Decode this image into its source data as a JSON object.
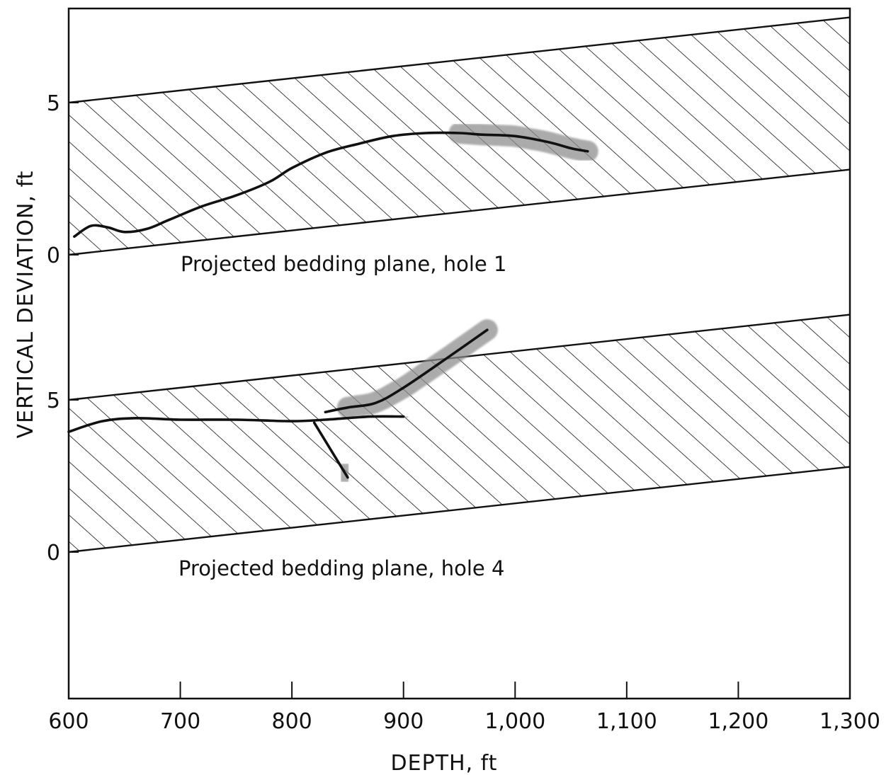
{
  "chart_data": {
    "type": "line",
    "xlabel": "DEPTH, ft",
    "ylabel": "VERTICAL DEVIATION, ft",
    "xlim": [
      600,
      1300
    ],
    "x_ticks": [
      {
        "value": 600,
        "label": "600"
      },
      {
        "value": 700,
        "label": "700"
      },
      {
        "value": 800,
        "label": "800"
      },
      {
        "value": 900,
        "label": "900"
      },
      {
        "value": 1000,
        "label": "1,000"
      },
      {
        "value": 1100,
        "label": "1,100"
      },
      {
        "value": 1200,
        "label": "1,200"
      },
      {
        "value": 1300,
        "label": "1,300"
      }
    ],
    "grid": false,
    "legend": "none",
    "panels": [
      {
        "label": "Projected bedding plane, hole 1",
        "y_ticks": [
          {
            "value": 0,
            "label": "0"
          },
          {
            "value": 5,
            "label": "5"
          }
        ],
        "band": {
          "lower": [
            [
              600,
              0
            ],
            [
              1300,
              2.8
            ]
          ],
          "upper": [
            [
              600,
              5
            ],
            [
              1300,
              7.8
            ]
          ]
        },
        "series": [
          {
            "points": [
              [
                605,
                0.6
              ],
              [
                620,
                0.95
              ],
              [
                635,
                0.9
              ],
              [
                650,
                0.75
              ],
              [
                670,
                0.85
              ],
              [
                690,
                1.15
              ],
              [
                720,
                1.6
              ],
              [
                750,
                1.95
              ],
              [
                780,
                2.4
              ],
              [
                800,
                2.85
              ],
              [
                830,
                3.35
              ],
              [
                860,
                3.65
              ],
              [
                890,
                3.9
              ],
              [
                920,
                4.0
              ],
              [
                950,
                4.0
              ],
              [
                970,
                3.95
              ],
              [
                1000,
                3.9
              ],
              [
                1030,
                3.7
              ],
              [
                1050,
                3.5
              ],
              [
                1065,
                3.4
              ]
            ],
            "rough_segment": [
              950,
              1070
            ]
          }
        ]
      },
      {
        "label": "Projected bedding plane, hole 4",
        "y_ticks": [
          {
            "value": 0,
            "label": "0"
          },
          {
            "value": 5,
            "label": "5"
          }
        ],
        "band": {
          "lower": [
            [
              600,
              0
            ],
            [
              1300,
              2.8
            ]
          ],
          "upper": [
            [
              600,
              5
            ],
            [
              1300,
              7.8
            ]
          ]
        },
        "series": [
          {
            "points": [
              [
                600,
                3.95
              ],
              [
                630,
                4.3
              ],
              [
                660,
                4.4
              ],
              [
                700,
                4.35
              ],
              [
                750,
                4.35
              ],
              [
                800,
                4.3
              ],
              [
                830,
                4.35
              ],
              [
                870,
                4.45
              ],
              [
                900,
                4.45
              ]
            ],
            "rough_segment": [
              860,
              905
            ]
          },
          {
            "points": [
              [
                820,
                4.25
              ],
              [
                850,
                2.45
              ]
            ],
            "rough_segment": [
              845,
              870
            ]
          },
          {
            "points": [
              [
                830,
                4.6
              ],
              [
                850,
                4.75
              ],
              [
                875,
                4.9
              ],
              [
                900,
                5.4
              ],
              [
                940,
                6.4
              ],
              [
                975,
                7.3
              ]
            ],
            "rough_segment": [
              850,
              990
            ]
          }
        ]
      }
    ]
  }
}
